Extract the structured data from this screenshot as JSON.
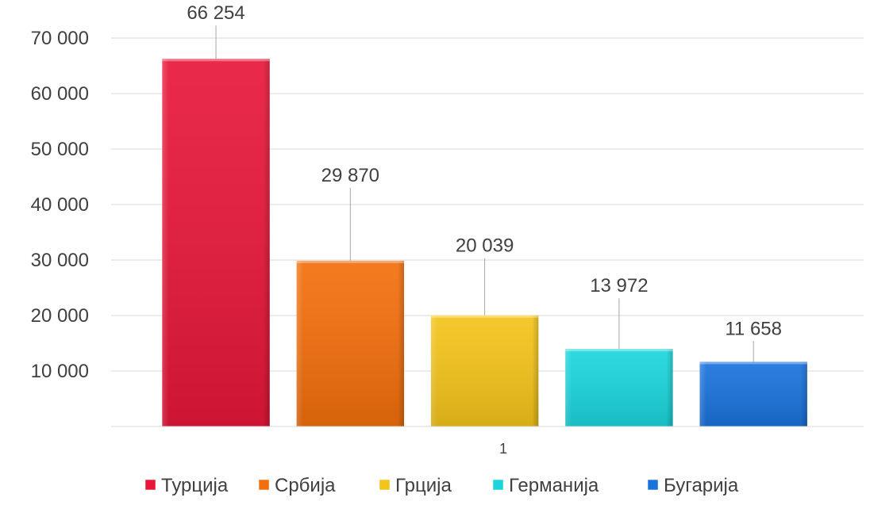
{
  "chart_data": {
    "type": "bar",
    "categories": [
      "1"
    ],
    "series": [
      {
        "name": "Турција",
        "values": [
          66254
        ],
        "color": "#e8173a"
      },
      {
        "name": "Србија",
        "values": [
          29870
        ],
        "color": "#f36f0c"
      },
      {
        "name": "Грција",
        "values": [
          20039
        ],
        "color": "#f4c41a"
      },
      {
        "name": "Германија",
        "values": [
          13972
        ],
        "color": "#1ad6dc"
      },
      {
        "name": "Бугарија",
        "values": [
          11658
        ],
        "color": "#1a73dc"
      }
    ],
    "data_labels": [
      "66 254",
      "29 870",
      "20 039",
      "13 972",
      "11 658"
    ],
    "y_ticks": [
      {
        "value": 10000,
        "label": "10 000"
      },
      {
        "value": 20000,
        "label": "20 000"
      },
      {
        "value": 30000,
        "label": "30 000"
      },
      {
        "value": 40000,
        "label": "40 000"
      },
      {
        "value": 50000,
        "label": "50 000"
      },
      {
        "value": 60000,
        "label": "60 000"
      },
      {
        "value": 70000,
        "label": "70 000"
      }
    ],
    "ylim": [
      0,
      70000
    ],
    "grid": true,
    "legend_position": "bottom",
    "title": "",
    "xlabel": "",
    "ylabel": ""
  }
}
